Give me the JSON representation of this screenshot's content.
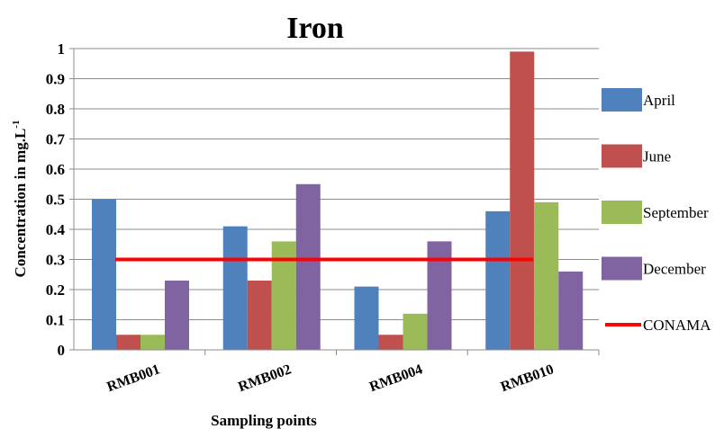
{
  "chart_data": {
    "type": "bar",
    "title": "Iron",
    "xlabel": "Sampling points",
    "ylabel": "Concentration in mg.L",
    "ylabel_sup": "-1",
    "categories": [
      "RMB001",
      "RMB002",
      "RMB004",
      "RMB010"
    ],
    "ylim": [
      0,
      1
    ],
    "yticks": [
      "0",
      "0.1",
      "0.2",
      "0.3",
      "0.4",
      "0.5",
      "0.6",
      "0.7",
      "0.8",
      "0.9",
      "1"
    ],
    "grid": true,
    "legend_position": "right",
    "series": [
      {
        "name": "April",
        "color": "#4f81bd",
        "values": [
          0.5,
          0.41,
          0.21,
          0.46
        ]
      },
      {
        "name": "June",
        "color": "#c0504d",
        "values": [
          0.05,
          0.23,
          0.05,
          0.99
        ]
      },
      {
        "name": "September",
        "color": "#9bbb59",
        "values": [
          0.05,
          0.36,
          0.12,
          0.49
        ]
      },
      {
        "name": "December",
        "color": "#8064a2",
        "values": [
          0.23,
          0.55,
          0.36,
          0.26
        ]
      }
    ],
    "reference_line": {
      "name": "CONAMA",
      "value": 0.3,
      "color": "#ff0000"
    }
  }
}
